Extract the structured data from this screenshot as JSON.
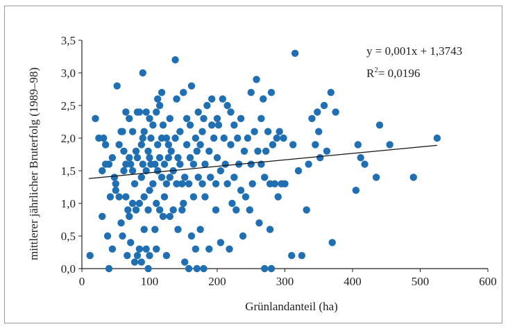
{
  "chart_data": {
    "type": "scatter",
    "xlabel": "Grünlandanteil (ha)",
    "ylabel": "mittlerer jährlicher Bruterfolg (1989–98)",
    "xlim": [
      0,
      600
    ],
    "ylim": [
      0,
      3.5
    ],
    "x_ticks": [
      "0",
      "100",
      "200",
      "300",
      "400",
      "500",
      "600"
    ],
    "y_ticks": [
      "0,0",
      "0,5",
      "1,0",
      "1,5",
      "2,0",
      "2,5",
      "3,0",
      "3,5"
    ],
    "grid": false,
    "legend": "none",
    "point_color": "#1f6fb2",
    "trendline": {
      "equation": "y = 0,001x + 1,3743",
      "r2_prefix": "R",
      "r2_exp": "2",
      "r2_value": "= 0,0196",
      "x_range": [
        10,
        525
      ],
      "y_range": [
        1.38,
        1.89
      ]
    },
    "points": [
      [
        12,
        0.2
      ],
      [
        20,
        2.3
      ],
      [
        25,
        2.0
      ],
      [
        30,
        0.8
      ],
      [
        30,
        1.5
      ],
      [
        32,
        2.0
      ],
      [
        35,
        1.9
      ],
      [
        35,
        1.6
      ],
      [
        38,
        0.5
      ],
      [
        40,
        0.0
      ],
      [
        40,
        1.6
      ],
      [
        42,
        1.1
      ],
      [
        45,
        1.7
      ],
      [
        45,
        0.3
      ],
      [
        48,
        1.4
      ],
      [
        50,
        1.3
      ],
      [
        50,
        1.2
      ],
      [
        52,
        2.8
      ],
      [
        55,
        1.1
      ],
      [
        55,
        1.9
      ],
      [
        58,
        0.7
      ],
      [
        58,
        2.1
      ],
      [
        60,
        2.1
      ],
      [
        60,
        0.5
      ],
      [
        62,
        1.8
      ],
      [
        62,
        1.5
      ],
      [
        65,
        2.4
      ],
      [
        65,
        1.6
      ],
      [
        65,
        1.1
      ],
      [
        67,
        0.2
      ],
      [
        68,
        0.9
      ],
      [
        70,
        2.3
      ],
      [
        70,
        1.7
      ],
      [
        70,
        0.8
      ],
      [
        72,
        1.6
      ],
      [
        72,
        0.4
      ],
      [
        75,
        1.0
      ],
      [
        75,
        1.5
      ],
      [
        75,
        2.1
      ],
      [
        78,
        1.3
      ],
      [
        78,
        0.1
      ],
      [
        80,
        1.8
      ],
      [
        80,
        0.9
      ],
      [
        82,
        2.4
      ],
      [
        82,
        1.7
      ],
      [
        82,
        0.2
      ],
      [
        85,
        0.3
      ],
      [
        85,
        1.0
      ],
      [
        85,
        2.4
      ],
      [
        88,
        1.9
      ],
      [
        88,
        1.4
      ],
      [
        88,
        0.1
      ],
      [
        90,
        3.0
      ],
      [
        90,
        1.6
      ],
      [
        90,
        2.0
      ],
      [
        92,
        0.6
      ],
      [
        92,
        1.1
      ],
      [
        92,
        2.1
      ],
      [
        95,
        2.4
      ],
      [
        95,
        0.3
      ],
      [
        95,
        1.5
      ],
      [
        98,
        1.8
      ],
      [
        98,
        0.0
      ],
      [
        98,
        0.9
      ],
      [
        100,
        2.3
      ],
      [
        100,
        1.7
      ],
      [
        100,
        1.2
      ],
      [
        100,
        0.2
      ],
      [
        102,
        2.0
      ],
      [
        102,
        1.6
      ],
      [
        105,
        2.2
      ],
      [
        105,
        1.3
      ],
      [
        108,
        1.6
      ],
      [
        108,
        0.6
      ],
      [
        110,
        1.0
      ],
      [
        110,
        0.3
      ],
      [
        110,
        2.4
      ],
      [
        112,
        1.9
      ],
      [
        112,
        1.5
      ],
      [
        112,
        2.6
      ],
      [
        115,
        2.5
      ],
      [
        115,
        0.9
      ],
      [
        115,
        1.7
      ],
      [
        118,
        2.7
      ],
      [
        118,
        2.0
      ],
      [
        118,
        1.4
      ],
      [
        120,
        2.2
      ],
      [
        120,
        0.8
      ],
      [
        122,
        1.6
      ],
      [
        122,
        1.1
      ],
      [
        125,
        2.0
      ],
      [
        125,
        0.2
      ],
      [
        125,
        1.3
      ],
      [
        128,
        1.9
      ],
      [
        128,
        1.7
      ],
      [
        130,
        1.4
      ],
      [
        130,
        0.8
      ],
      [
        130,
        2.3
      ],
      [
        132,
        1.8
      ],
      [
        135,
        1.5
      ],
      [
        135,
        0.9
      ],
      [
        138,
        3.2
      ],
      [
        138,
        2.0
      ],
      [
        140,
        1.3
      ],
      [
        140,
        2.6
      ],
      [
        142,
        1.7
      ],
      [
        142,
        0.6
      ],
      [
        145,
        1.6
      ],
      [
        145,
        2.1
      ],
      [
        148,
        0.9
      ],
      [
        148,
        1.3
      ],
      [
        150,
        2.7
      ],
      [
        150,
        1.0
      ],
      [
        152,
        1.4
      ],
      [
        152,
        0.1
      ],
      [
        155,
        1.9
      ],
      [
        155,
        2.3
      ],
      [
        158,
        1.3
      ],
      [
        158,
        0.0
      ],
      [
        160,
        2.2
      ],
      [
        160,
        1.7
      ],
      [
        162,
        0.5
      ],
      [
        162,
        2.8
      ],
      [
        165,
        1.6
      ],
      [
        165,
        1.1
      ],
      [
        168,
        2.0
      ],
      [
        168,
        0.3
      ],
      [
        170,
        1.8
      ],
      [
        170,
        0.0
      ],
      [
        172,
        2.4
      ],
      [
        172,
        1.4
      ],
      [
        175,
        1.9
      ],
      [
        175,
        0.6
      ],
      [
        178,
        2.1
      ],
      [
        178,
        1.3
      ],
      [
        180,
        2.3
      ],
      [
        180,
        0.0
      ],
      [
        182,
        1.6
      ],
      [
        182,
        1.1
      ],
      [
        185,
        2.5
      ],
      [
        188,
        1.8
      ],
      [
        188,
        0.3
      ],
      [
        190,
        1.4
      ],
      [
        192,
        2.6
      ],
      [
        192,
        2.2
      ],
      [
        195,
        2.0
      ],
      [
        198,
        1.3
      ],
      [
        198,
        0.9
      ],
      [
        200,
        2.3
      ],
      [
        200,
        1.7
      ],
      [
        202,
        2.2
      ],
      [
        205,
        1.5
      ],
      [
        205,
        0.4
      ],
      [
        208,
        2.6
      ],
      [
        210,
        2.0
      ],
      [
        212,
        1.6
      ],
      [
        215,
        2.5
      ],
      [
        215,
        1.3
      ],
      [
        218,
        0.3
      ],
      [
        220,
        2.4
      ],
      [
        220,
        1.9
      ],
      [
        222,
        1.0
      ],
      [
        225,
        2.2
      ],
      [
        225,
        1.4
      ],
      [
        228,
        0.9
      ],
      [
        230,
        2.0
      ],
      [
        232,
        1.6
      ],
      [
        235,
        2.3
      ],
      [
        235,
        1.2
      ],
      [
        238,
        0.5
      ],
      [
        240,
        1.8
      ],
      [
        242,
        1.1
      ],
      [
        245,
        2.0
      ],
      [
        248,
        0.9
      ],
      [
        250,
        2.7
      ],
      [
        250,
        1.6
      ],
      [
        252,
        1.3
      ],
      [
        255,
        2.1
      ],
      [
        258,
        2.9
      ],
      [
        260,
        1.8
      ],
      [
        262,
        0.7
      ],
      [
        265,
        2.3
      ],
      [
        265,
        1.6
      ],
      [
        268,
        2.6
      ],
      [
        270,
        1.4
      ],
      [
        270,
        0.0
      ],
      [
        272,
        1.8
      ],
      [
        275,
        2.1
      ],
      [
        278,
        0.6
      ],
      [
        278,
        1.3
      ],
      [
        280,
        2.7
      ],
      [
        280,
        0.0
      ],
      [
        282,
        1.9
      ],
      [
        285,
        1.3
      ],
      [
        288,
        2.0
      ],
      [
        290,
        1.1
      ],
      [
        292,
        2.1
      ],
      [
        295,
        1.3
      ],
      [
        298,
        2.0
      ],
      [
        300,
        1.3
      ],
      [
        310,
        0.2
      ],
      [
        312,
        1.9
      ],
      [
        315,
        3.3
      ],
      [
        320,
        1.5
      ],
      [
        325,
        0.2
      ],
      [
        332,
        0.9
      ],
      [
        335,
        1.6
      ],
      [
        340,
        2.3
      ],
      [
        345,
        1.9
      ],
      [
        348,
        2.4
      ],
      [
        350,
        2.1
      ],
      [
        352,
        1.7
      ],
      [
        358,
        2.5
      ],
      [
        362,
        1.8
      ],
      [
        368,
        2.7
      ],
      [
        370,
        0.4
      ],
      [
        375,
        2.4
      ],
      [
        405,
        1.2
      ],
      [
        408,
        1.9
      ],
      [
        412,
        1.7
      ],
      [
        418,
        1.6
      ],
      [
        435,
        1.4
      ],
      [
        440,
        2.2
      ],
      [
        455,
        1.9
      ],
      [
        490,
        1.4
      ],
      [
        525,
        2.0
      ]
    ]
  }
}
